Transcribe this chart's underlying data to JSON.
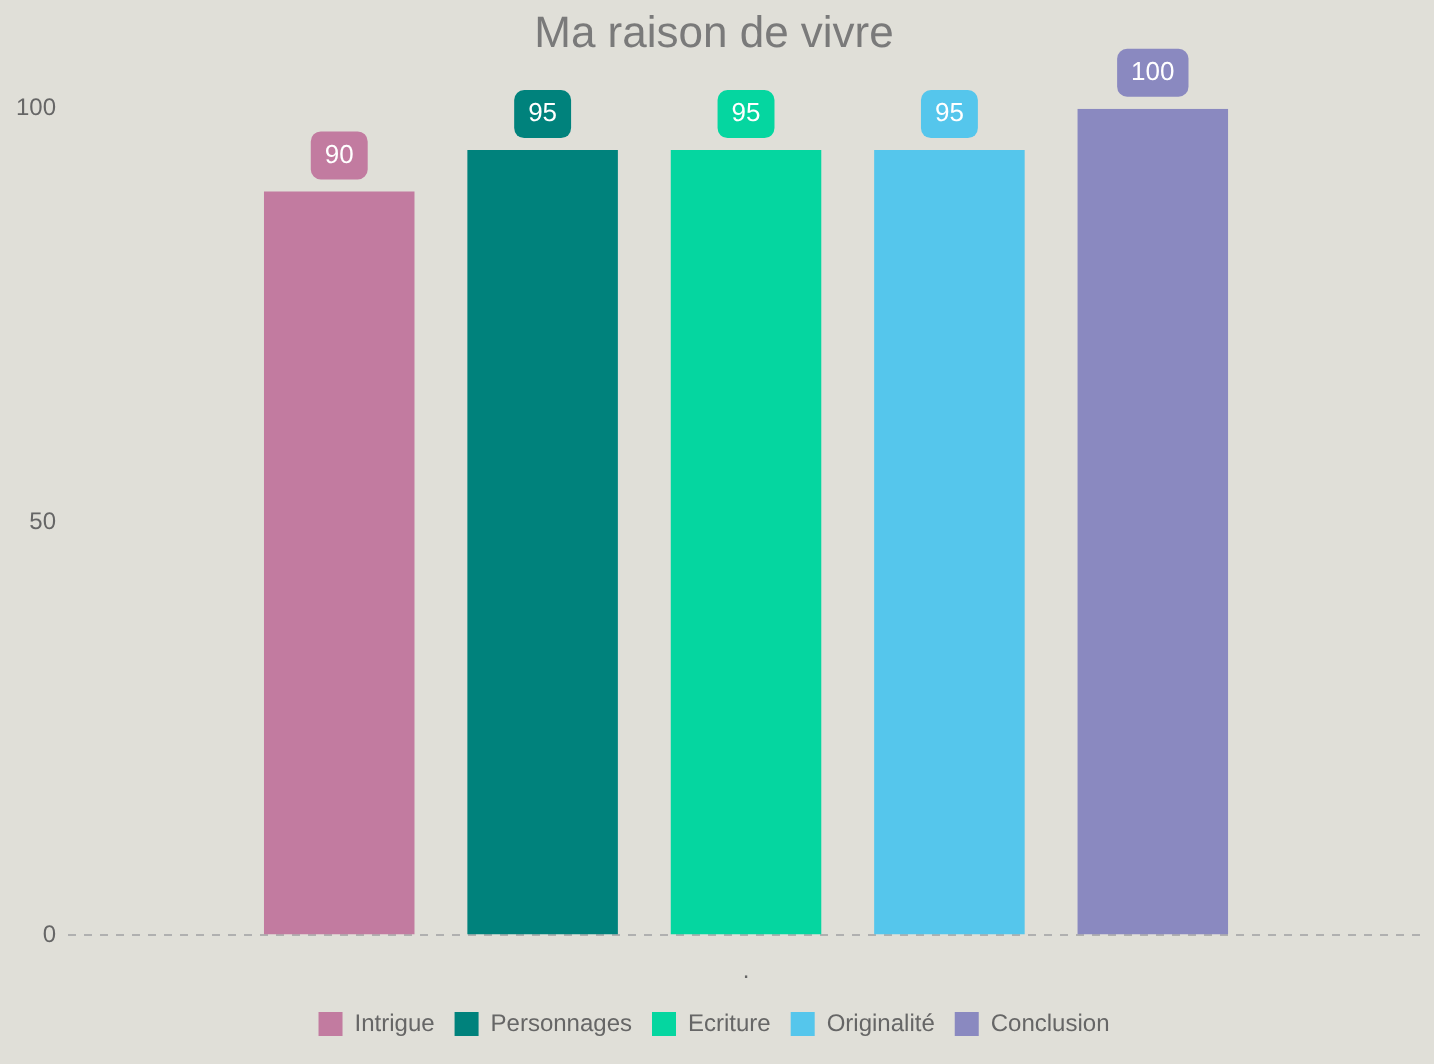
{
  "chart_data": {
    "type": "bar",
    "title": "Ma raison de vivre",
    "categories": [
      "."
    ],
    "series": [
      {
        "name": "Intrigue",
        "color": "#c27ba0",
        "values": [
          90
        ]
      },
      {
        "name": "Personnages",
        "color": "#00827c",
        "values": [
          95
        ]
      },
      {
        "name": "Ecriture",
        "color": "#05d6a0",
        "values": [
          95
        ]
      },
      {
        "name": "Originalité",
        "color": "#55c6ec",
        "values": [
          95
        ]
      },
      {
        "name": "Conclusion",
        "color": "#8a89c0",
        "values": [
          100
        ]
      }
    ],
    "ylim": [
      0,
      100
    ],
    "yticks": [
      0,
      50,
      100
    ],
    "grid": false,
    "legend": "bottom",
    "data_labels": true
  }
}
